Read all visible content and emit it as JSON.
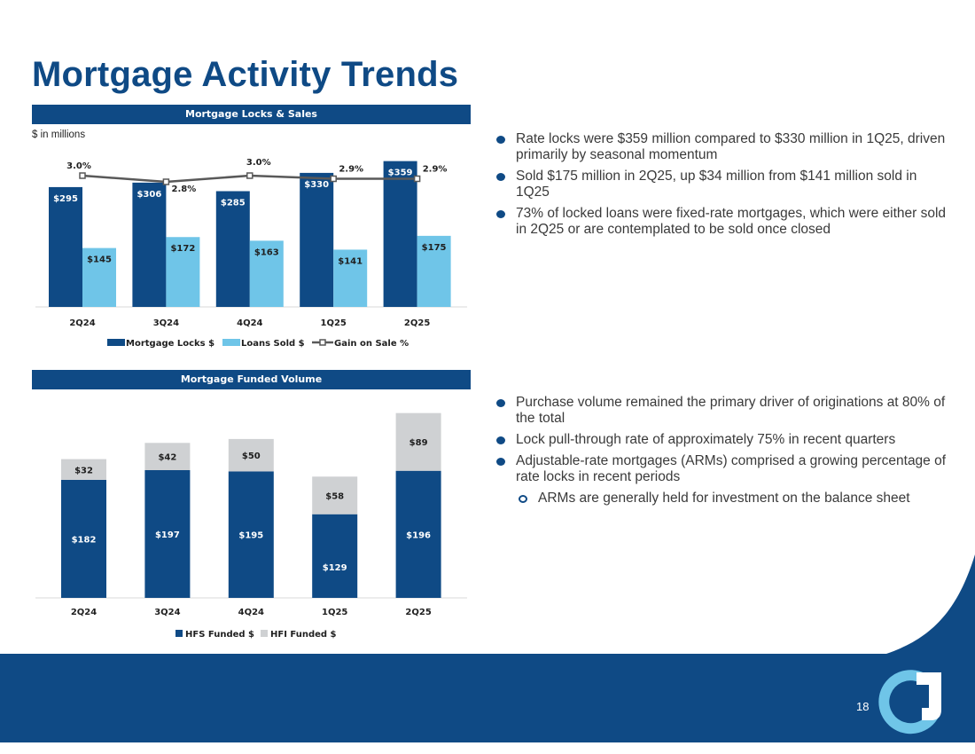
{
  "page": {
    "title": "Mortgage Activity Trends",
    "page_number": "18"
  },
  "colors": {
    "navy": "#0f4a85",
    "light_blue": "#6fc5e8",
    "gray": "#cfd1d3",
    "line": "#595959",
    "white": "#ffffff"
  },
  "chart_data": [
    {
      "type": "bar",
      "title": "Mortgage Locks & Sales",
      "units_note": "$ in millions",
      "categories": [
        "2Q24",
        "3Q24",
        "4Q24",
        "1Q25",
        "2Q25"
      ],
      "series": [
        {
          "name": "Mortgage Locks $",
          "values": [
            295,
            306,
            285,
            330,
            359
          ],
          "labels": [
            "$295",
            "$306",
            "$285",
            "$330",
            "$359"
          ]
        },
        {
          "name": "Loans Sold $",
          "values": [
            145,
            172,
            163,
            141,
            175
          ],
          "labels": [
            "$145",
            "$172",
            "$163",
            "$141",
            "$175"
          ]
        },
        {
          "name": "Gain on Sale %",
          "type": "line",
          "values": [
            3.0,
            2.8,
            3.0,
            2.9,
            2.9
          ],
          "labels": [
            "3.0%",
            "2.8%",
            "3.0%",
            "2.9%",
            "2.9%"
          ]
        }
      ],
      "ylim": [
        0,
        380
      ],
      "legend": [
        "Mortgage Locks $",
        "Loans Sold $",
        "Gain on Sale %"
      ],
      "legend_position": "bottom"
    },
    {
      "type": "bar",
      "stacked": true,
      "title": "Mortgage Funded Volume",
      "categories": [
        "2Q24",
        "3Q24",
        "4Q24",
        "1Q25",
        "2Q25"
      ],
      "series": [
        {
          "name": "HFS Funded $",
          "values": [
            182,
            197,
            195,
            129,
            196
          ],
          "labels": [
            "$182",
            "$197",
            "$195",
            "$129",
            "$196"
          ]
        },
        {
          "name": "HFI Funded $",
          "values": [
            32,
            42,
            50,
            58,
            89
          ],
          "labels": [
            "$32",
            "$42",
            "$50",
            "$58",
            "$89"
          ]
        }
      ],
      "ylim": [
        0,
        290
      ],
      "legend": [
        "HFS Funded $",
        "HFI Funded $"
      ],
      "legend_position": "bottom"
    }
  ],
  "bullets_top": [
    "Rate locks were $359 million compared to $330 million in 1Q25, driven primarily by seasonal momentum",
    "Sold $175 million in 2Q25, up $34 million from $141 million sold in 1Q25",
    "73% of locked loans were fixed-rate mortgages, which were either sold in 2Q25 or are contemplated to be sold once closed"
  ],
  "bullets_bottom": [
    "Purchase volume remained the primary driver of originations at 80% of the total",
    "Lock pull-through rate of approximately 75% in recent quarters",
    "Adjustable-rate mortgages (ARMs) comprised a growing percentage of rate locks in recent periods"
  ],
  "sub_bullets_bottom": [
    "ARMs are generally held for investment on the balance sheet"
  ]
}
